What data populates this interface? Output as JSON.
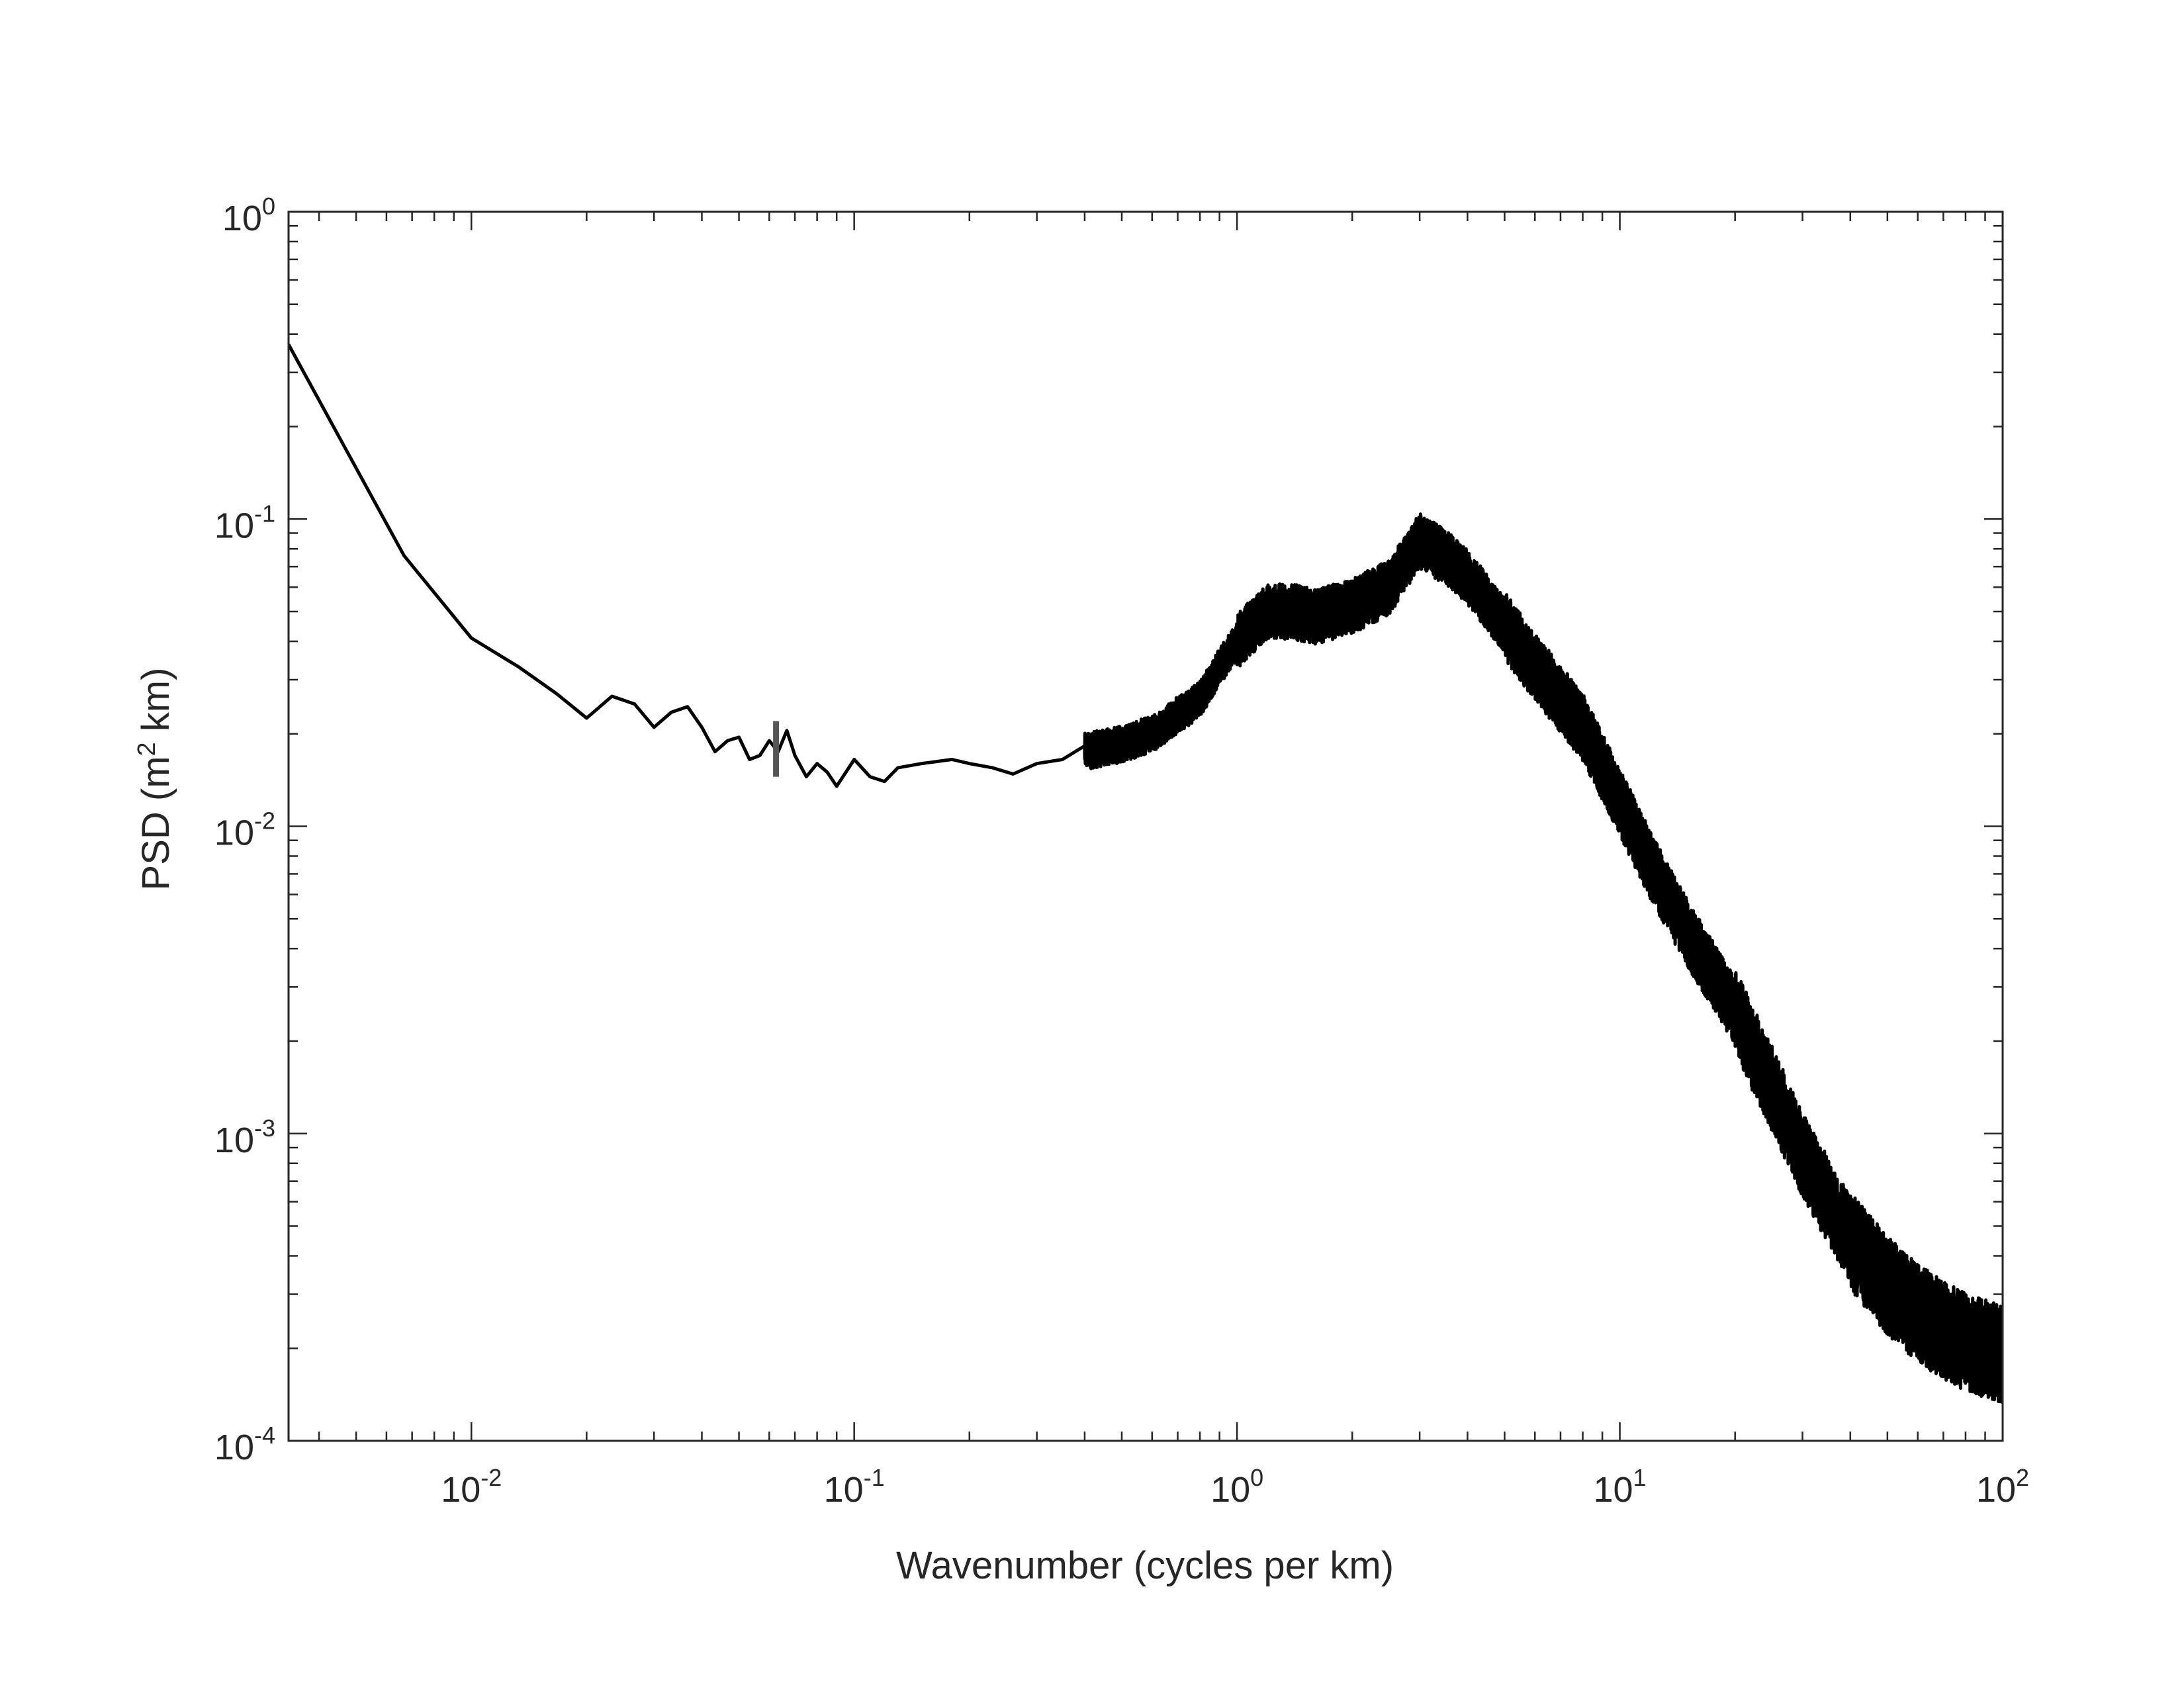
{
  "chart_data": {
    "type": "line",
    "title": "",
    "xlabel": "Wavenumber (cycles per km)",
    "ylabel": {
      "prefix": "PSD (m",
      "sup": "2",
      "suffix": " km)"
    },
    "xscale": "log",
    "yscale": "log",
    "xlim": [
      0.00333,
      100
    ],
    "ylim": [
      0.0001,
      1
    ],
    "grid": false,
    "legend": "none",
    "x_ticks": [
      {
        "value": 0.01,
        "base": "10",
        "exp": "-2"
      },
      {
        "value": 0.1,
        "base": "10",
        "exp": "-1"
      },
      {
        "value": 1,
        "base": "10",
        "exp": "0"
      },
      {
        "value": 10,
        "base": "10",
        "exp": "1"
      },
      {
        "value": 100,
        "base": "10",
        "exp": "2"
      }
    ],
    "y_ticks": [
      {
        "value": 0.0001,
        "base": "10",
        "exp": "-4"
      },
      {
        "value": 0.001,
        "base": "10",
        "exp": "-3"
      },
      {
        "value": 0.01,
        "base": "10",
        "exp": "-2"
      },
      {
        "value": 0.1,
        "base": "10",
        "exp": "-1"
      },
      {
        "value": 1,
        "base": "10",
        "exp": "0"
      }
    ],
    "series": [
      {
        "color": "#000000",
        "x": [
          0.00333,
          0.00667,
          0.01,
          0.0133,
          0.0167,
          0.02,
          0.0233,
          0.0267,
          0.03,
          0.0333,
          0.0367,
          0.04,
          0.0433,
          0.0467,
          0.05,
          0.0533,
          0.0567,
          0.06,
          0.0633,
          0.0667,
          0.07,
          0.075,
          0.08,
          0.085,
          0.09,
          0.1,
          0.11,
          0.12,
          0.13,
          0.15,
          0.18,
          0.2,
          0.23,
          0.26,
          0.3,
          0.35,
          0.4,
          0.5,
          0.6,
          0.7,
          0.8,
          0.9,
          1.0,
          1.1,
          1.2,
          1.4,
          1.6,
          2.0,
          2.5,
          3.0,
          3.5,
          4.0,
          5.0,
          6.0,
          7.0,
          8.0,
          10.0,
          12.0,
          15.0,
          20.0,
          25.0,
          30.0,
          40.0,
          50.0,
          60.0,
          70.0,
          80.0,
          100.0
        ],
        "y": [
          0.37,
          0.076,
          0.041,
          0.033,
          0.027,
          0.0225,
          0.0265,
          0.025,
          0.021,
          0.0235,
          0.0245,
          0.021,
          0.0175,
          0.019,
          0.0195,
          0.0165,
          0.017,
          0.019,
          0.0175,
          0.0205,
          0.017,
          0.0145,
          0.016,
          0.015,
          0.0135,
          0.0165,
          0.0145,
          0.014,
          0.0155,
          0.016,
          0.0165,
          0.016,
          0.0155,
          0.0148,
          0.016,
          0.0165,
          0.0175,
          0.0185,
          0.02,
          0.023,
          0.026,
          0.033,
          0.04,
          0.045,
          0.05,
          0.05,
          0.048,
          0.052,
          0.06,
          0.085,
          0.075,
          0.065,
          0.045,
          0.033,
          0.026,
          0.021,
          0.012,
          0.0075,
          0.0045,
          0.0025,
          0.0014,
          0.00085,
          0.00045,
          0.00032,
          0.00026,
          0.00023,
          0.00021,
          0.00019
        ]
      }
    ],
    "annotations": [
      {
        "type": "vertical-marker",
        "x": 0.0625,
        "y_range": [
          0.0145,
          0.022
        ],
        "color": "#555555"
      }
    ]
  }
}
